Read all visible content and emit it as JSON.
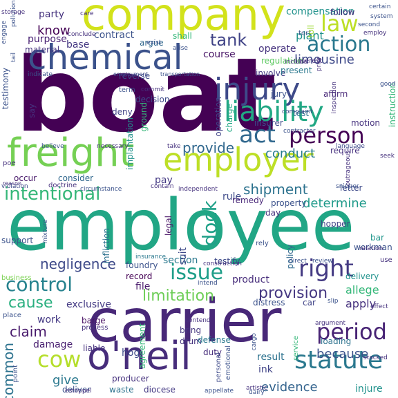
{
  "words": [
    {
      "text": "boat",
      "color": "#440154"
    },
    {
      "text": "employee",
      "color": "#21a685"
    },
    {
      "text": "carrier",
      "color": "#482878"
    },
    {
      "text": "company",
      "color": "#d2e21b"
    },
    {
      "text": "employer",
      "color": "#bddf26"
    },
    {
      "text": "freight",
      "color": "#75d054"
    },
    {
      "text": "chemical",
      "color": "#3b528b"
    },
    {
      "text": "injury",
      "color": "#3e4a89"
    },
    {
      "text": "o'neil",
      "color": "#472d7b"
    },
    {
      "text": "liability",
      "color": "#22a884"
    },
    {
      "text": "act",
      "color": "#31688e"
    },
    {
      "text": "person",
      "color": "#440154"
    },
    {
      "text": "intentional",
      "color": "#35b779"
    },
    {
      "text": "control",
      "color": "#26828e"
    },
    {
      "text": "right",
      "color": "#443a83"
    },
    {
      "text": "issue",
      "color": "#1f9e89"
    },
    {
      "text": "statute",
      "color": "#2a788e"
    },
    {
      "text": "period",
      "color": "#482475"
    },
    {
      "text": "law",
      "color": "#bddf26"
    },
    {
      "text": "action",
      "color": "#2a788e"
    },
    {
      "text": "cow",
      "color": "#b5de2b"
    },
    {
      "text": "limitation",
      "color": "#6ece58"
    },
    {
      "text": "tank",
      "color": "#414487"
    },
    {
      "text": "negligence",
      "color": "#3e4a89"
    },
    {
      "text": "cause",
      "color": "#29af7f"
    },
    {
      "text": "dock",
      "color": "#1fa088"
    },
    {
      "text": "claim",
      "color": "#481a6c"
    },
    {
      "text": "provision",
      "color": "#453781"
    },
    {
      "text": "evidence",
      "color": "#33638d"
    },
    {
      "text": "limousine",
      "color": "#3e4989"
    },
    {
      "text": "provide",
      "color": "#31688e"
    },
    {
      "text": "shipment",
      "color": "#2c728e"
    },
    {
      "text": "determine",
      "color": "#1f9a8a"
    },
    {
      "text": "conduct",
      "color": "#287d8e"
    },
    {
      "text": "because",
      "color": "#3b528b"
    },
    {
      "text": "common",
      "color": "#2c728e"
    },
    {
      "text": "know",
      "color": "#440154"
    },
    {
      "text": "party",
      "color": "#46337e"
    },
    {
      "text": "compensation",
      "color": "#20928c"
    },
    {
      "text": "apply",
      "color": "#46327e"
    },
    {
      "text": "injure",
      "color": "#20928c"
    },
    {
      "text": "give",
      "color": "#2a788e"
    },
    {
      "text": "allege",
      "color": "#35b779"
    },
    {
      "text": "plant",
      "color": "#21918c"
    },
    {
      "text": "operate",
      "color": "#46327e"
    },
    {
      "text": "course",
      "color": "#471365"
    },
    {
      "text": "base",
      "color": "#453882"
    },
    {
      "text": "contract",
      "color": "#3b528b"
    },
    {
      "text": "purpose",
      "color": "#482173"
    },
    {
      "text": "rule",
      "color": "#3e4a89"
    },
    {
      "text": "work",
      "color": "#443983"
    },
    {
      "text": "damage",
      "color": "#481f70"
    },
    {
      "text": "section",
      "color": "#2a788e"
    },
    {
      "text": "file",
      "color": "#48186a"
    },
    {
      "text": "result",
      "color": "#2c728e"
    },
    {
      "text": "product",
      "color": "#472d7b"
    },
    {
      "text": "hog",
      "color": "#3e4a89"
    },
    {
      "text": "ink",
      "color": "#414487"
    },
    {
      "text": "pay",
      "color": "#443983"
    },
    {
      "text": "suit",
      "color": "#3e4989"
    },
    {
      "text": "exclusive",
      "color": "#443a83"
    },
    {
      "text": "barge",
      "color": "#471063"
    },
    {
      "text": "distress",
      "color": "#3b528b"
    },
    {
      "text": "insurer",
      "color": "#3e4a89"
    },
    {
      "text": "decision",
      "color": "#3e4a89"
    },
    {
      "text": "deny",
      "color": "#414487"
    },
    {
      "text": "say",
      "color": "#46327e"
    },
    {
      "text": "occur",
      "color": "#48186a"
    },
    {
      "text": "consider",
      "color": "#31688e"
    },
    {
      "text": "require",
      "color": "#46307e"
    },
    {
      "text": "bar",
      "color": "#1f958b"
    },
    {
      "text": "car",
      "color": "#414487"
    },
    {
      "text": "test",
      "color": "#2d708e"
    },
    {
      "text": "jury",
      "color": "#3b528b"
    },
    {
      "text": "day",
      "color": "#46327e"
    },
    {
      "text": "property",
      "color": "#3b528b"
    },
    {
      "text": "remedy",
      "color": "#482677"
    },
    {
      "text": "testify",
      "color": "#3e4a89"
    },
    {
      "text": "record",
      "color": "#440154"
    },
    {
      "text": "foundry",
      "color": "#3b528b"
    },
    {
      "text": "drum",
      "color": "#46337e"
    },
    {
      "text": "bring",
      "color": "#453781"
    },
    {
      "text": "duty",
      "color": "#472d7b"
    },
    {
      "text": "producer",
      "color": "#46327e"
    },
    {
      "text": "waste",
      "color": "#2c728e"
    },
    {
      "text": "diocese",
      "color": "#443983"
    },
    {
      "text": "defense",
      "color": "#2a788e"
    },
    {
      "text": "deliver",
      "color": "#3b528b"
    },
    {
      "text": "policy",
      "color": "#31688e"
    },
    {
      "text": "hopper",
      "color": "#414487"
    },
    {
      "text": "delivery",
      "color": "#20928c"
    },
    {
      "text": "loading",
      "color": "#2c728e"
    },
    {
      "text": "workman",
      "color": "#3b528b"
    },
    {
      "text": "letter",
      "color": "#3e4a89"
    },
    {
      "text": "legal",
      "color": "#471365"
    },
    {
      "text": "agreement",
      "color": "#35b779"
    },
    {
      "text": "operation",
      "color": "#414487"
    },
    {
      "text": "charge",
      "color": "#22a884"
    },
    {
      "text": "implantation",
      "color": "#21918c"
    },
    {
      "text": "infliction",
      "color": "#2c728e"
    },
    {
      "text": "motion",
      "color": "#46327e"
    },
    {
      "text": "affirm",
      "color": "#482878"
    },
    {
      "text": "involve",
      "color": "#443983"
    },
    {
      "text": "regulation",
      "color": "#5ec962"
    },
    {
      "text": "present",
      "color": "#2a788e"
    },
    {
      "text": "follow",
      "color": "#46327e"
    },
    {
      "text": "shall",
      "color": "#35b779"
    },
    {
      "text": "argue",
      "color": "#31688e"
    },
    {
      "text": "material",
      "color": "#46327e"
    },
    {
      "text": "testimony",
      "color": "#3b528b"
    },
    {
      "text": "instruction",
      "color": "#35b779"
    },
    {
      "text": "tort",
      "color": "#3b528b"
    },
    {
      "text": "toll",
      "color": "#a0da39"
    },
    {
      "text": "term",
      "color": "#3b528b"
    },
    {
      "text": "reverse",
      "color": "#3e4a89"
    },
    {
      "text": "interest",
      "color": "#46327e"
    },
    {
      "text": "ground",
      "color": "#35b779"
    },
    {
      "text": "support",
      "color": "#3b528b"
    },
    {
      "text": "business",
      "color": "#7ad151"
    },
    {
      "text": "place",
      "color": "#3b528b"
    },
    {
      "text": "point",
      "color": "#3b528b"
    },
    {
      "text": "liable",
      "color": "#46327e"
    },
    {
      "text": "process",
      "color": "#46327e"
    },
    {
      "text": "emotional",
      "color": "#3b528b"
    },
    {
      "text": "service",
      "color": "#35b779"
    },
    {
      "text": "personal",
      "color": "#3e4a89"
    },
    {
      "text": "independent",
      "color": "#46327e"
    },
    {
      "text": "circumstance",
      "color": "#3b528b"
    },
    {
      "text": "doctrine",
      "color": "#46327e"
    },
    {
      "text": "contain",
      "color": "#46327e"
    },
    {
      "text": "insurance",
      "color": "#2a788e"
    },
    {
      "text": "construction",
      "color": "#46327e"
    },
    {
      "text": "direct",
      "color": "#3b528b"
    },
    {
      "text": "review",
      "color": "#3b528b"
    },
    {
      "text": "relation",
      "color": "#46327e"
    },
    {
      "text": "use",
      "color": "#46327e"
    },
    {
      "text": "rely",
      "color": "#3b528b"
    },
    {
      "text": "contractor",
      "color": "#3b528b"
    },
    {
      "text": "language",
      "color": "#3e4a89"
    },
    {
      "text": "seek",
      "color": "#46327e"
    },
    {
      "text": "outrageous",
      "color": "#46327e"
    },
    {
      "text": "complaint",
      "color": "#3e4a89"
    },
    {
      "text": "necessary",
      "color": "#46327e"
    },
    {
      "text": "believe",
      "color": "#3b528b"
    },
    {
      "text": "take",
      "color": "#46327e"
    },
    {
      "text": "good",
      "color": "#3b528b"
    },
    {
      "text": "commit",
      "color": "#46327e"
    },
    {
      "text": "employment",
      "color": "#3e4a89"
    },
    {
      "text": "transportation",
      "color": "#3b528b"
    },
    {
      "text": "include",
      "color": "#46327e"
    },
    {
      "text": "second",
      "color": "#3b528b"
    },
    {
      "text": "certain",
      "color": "#3b528b"
    },
    {
      "text": "employ",
      "color": "#46327e"
    },
    {
      "text": "system",
      "color": "#3b528b"
    },
    {
      "text": "care",
      "color": "#46327e"
    },
    {
      "text": "pollution",
      "color": "#3b528b"
    },
    {
      "text": "engage",
      "color": "#3b528b"
    },
    {
      "text": "storage",
      "color": "#46327e"
    },
    {
      "text": "conclude",
      "color": "#46327e"
    },
    {
      "text": "arise",
      "color": "#3b528b"
    },
    {
      "text": "exist",
      "color": "#3b528b"
    },
    {
      "text": "indicate",
      "color": "#3b528b"
    },
    {
      "text": "reason",
      "color": "#46327e"
    },
    {
      "text": "poe",
      "color": "#46327e"
    },
    {
      "text": "mixture",
      "color": "#3b528b"
    },
    {
      "text": "violation",
      "color": "#3e4a89"
    },
    {
      "text": "contend",
      "color": "#46327e"
    },
    {
      "text": "intend",
      "color": "#3b528b"
    },
    {
      "text": "argument",
      "color": "#46327e"
    },
    {
      "text": "slip",
      "color": "#3b528b"
    },
    {
      "text": "effect",
      "color": "#46327e"
    },
    {
      "text": "appellate",
      "color": "#3b528b"
    },
    {
      "text": "estoppel",
      "color": "#46327e"
    },
    {
      "text": "cargo",
      "color": "#3b528b"
    },
    {
      "text": "artistic",
      "color": "#46327e"
    },
    {
      "text": "dairy",
      "color": "#3b528b"
    },
    {
      "text": "stacked",
      "color": "#46327e"
    },
    {
      "text": "snipper",
      "color": "#3b528b"
    },
    {
      "text": "inspection",
      "color": "#46327e"
    },
    {
      "text": "tail",
      "color": "#3b528b"
    },
    {
      "text": "prior",
      "color": "#46327e"
    }
  ]
}
